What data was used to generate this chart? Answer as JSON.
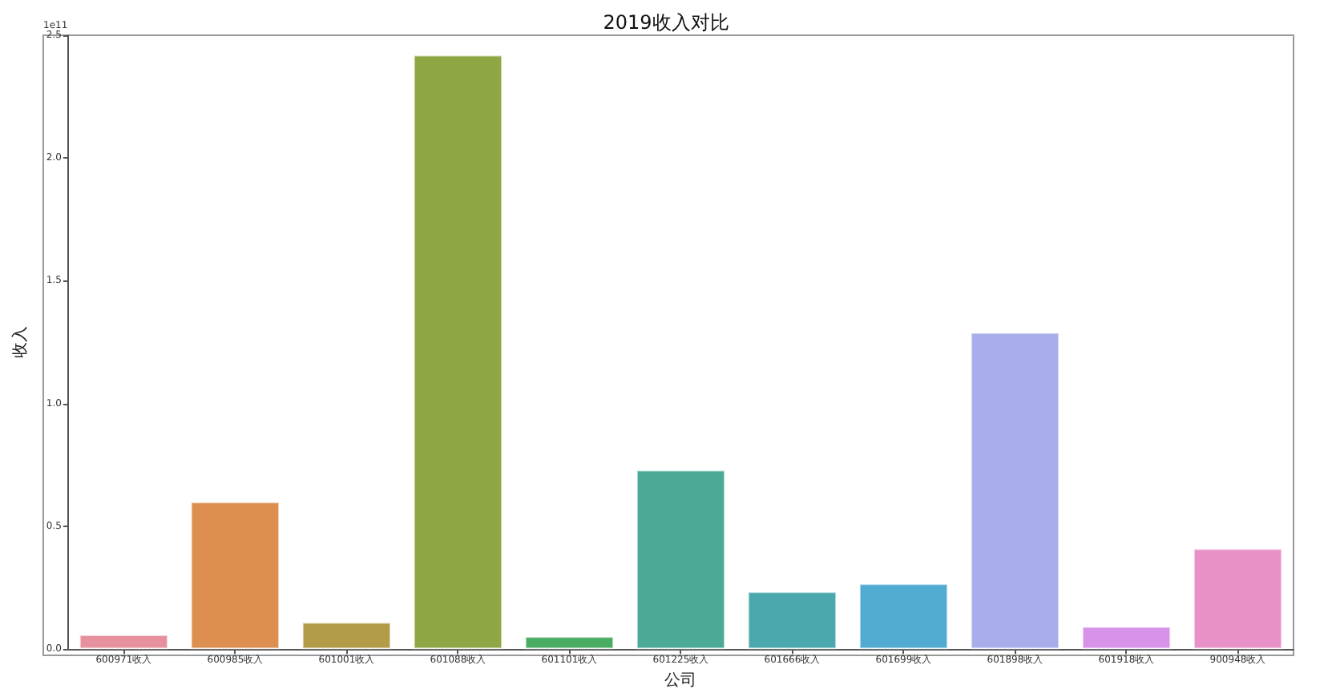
{
  "chart_data": {
    "type": "bar",
    "title": "2019收入对比",
    "xlabel": "公司",
    "ylabel": "收入",
    "categories": [
      "600971收入",
      "600985收入",
      "601001收入",
      "601088收入",
      "601101收入",
      "601225收入",
      "601666收入",
      "601699收入",
      "601898收入",
      "601918收入",
      "900948收入"
    ],
    "values": [
      0.059,
      0.6,
      0.11,
      2.42,
      0.052,
      0.73,
      0.235,
      0.267,
      1.29,
      0.093,
      0.41
    ],
    "colors": [
      "#e8919e",
      "#dc8f4e",
      "#b39c48",
      "#8fa644",
      "#4aac62",
      "#4aaa96",
      "#4ba8ac",
      "#52abd2",
      "#a9aeea",
      "#d693e8",
      "#e890c8"
    ],
    "ylim": [
      0,
      2.5
    ],
    "yticks": [
      {
        "value": 0,
        "label": "0.0"
      },
      {
        "value": 0.5,
        "label": "0.5"
      },
      {
        "value": 1,
        "label": "1.0"
      },
      {
        "value": 1.5,
        "label": "1.5"
      },
      {
        "value": 2,
        "label": "2.0"
      },
      {
        "value": 2.5,
        "label": "2.5"
      }
    ],
    "annotations": [
      "1e11"
    ],
    "grid": false
  }
}
